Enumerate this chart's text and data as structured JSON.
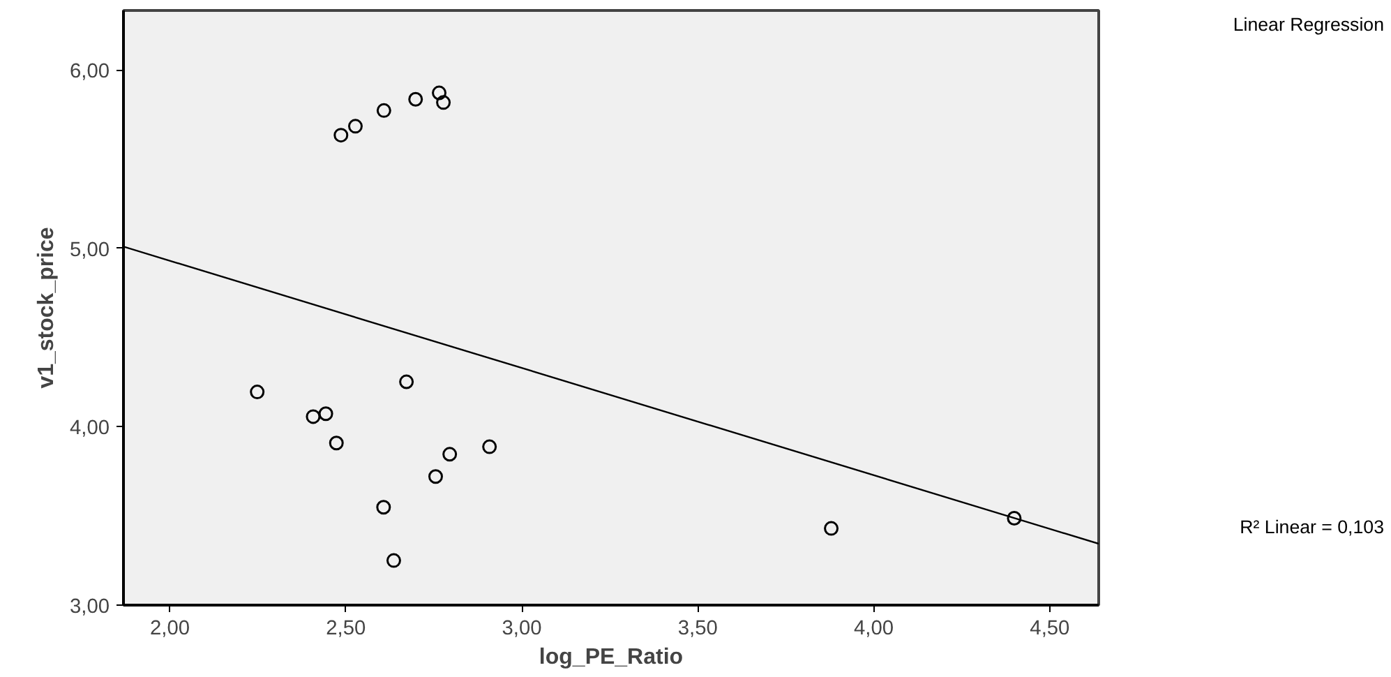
{
  "chart_data": {
    "type": "scatter",
    "xlabel": "log_PE_Ratio",
    "ylabel": "v1_stock_price",
    "legend_title": "Linear Regression",
    "annotations": [
      "R² Linear = 0,103"
    ],
    "xlim": [
      1.868,
      4.639
    ],
    "ylim": [
      3.0,
      6.334
    ],
    "xticks": [
      {
        "value": 2.0,
        "label": "2,00"
      },
      {
        "value": 2.5,
        "label": "2,50"
      },
      {
        "value": 3.0,
        "label": "3,00"
      },
      {
        "value": 3.5,
        "label": "3,50"
      },
      {
        "value": 4.0,
        "label": "4,00"
      },
      {
        "value": 4.5,
        "label": "4,50"
      }
    ],
    "yticks": [
      {
        "value": 3.0,
        "label": "3,00"
      },
      {
        "value": 4.0,
        "label": "4,00"
      },
      {
        "value": 5.0,
        "label": "5,00"
      },
      {
        "value": 6.0,
        "label": "6,00"
      }
    ],
    "grid": false,
    "series": [
      {
        "marker": "circle",
        "color": "#000000",
        "x": [
          2.486,
          2.527,
          2.608,
          2.698,
          2.765,
          2.777,
          2.248,
          2.672,
          2.407,
          2.443,
          2.473,
          2.795,
          2.908,
          2.755,
          2.607,
          2.636,
          3.879,
          4.399
        ],
        "values": [
          5.635,
          5.685,
          5.773,
          5.836,
          5.872,
          5.818,
          4.195,
          4.252,
          4.057,
          4.073,
          3.909,
          3.846,
          3.888,
          3.721,
          3.549,
          3.25,
          3.43,
          3.487
        ]
      },
      {
        "type": "line",
        "color": "#000000",
        "line_style": "solid",
        "x": [
          1.868,
          4.639
        ],
        "values": [
          5.01,
          3.344
        ]
      }
    ]
  }
}
